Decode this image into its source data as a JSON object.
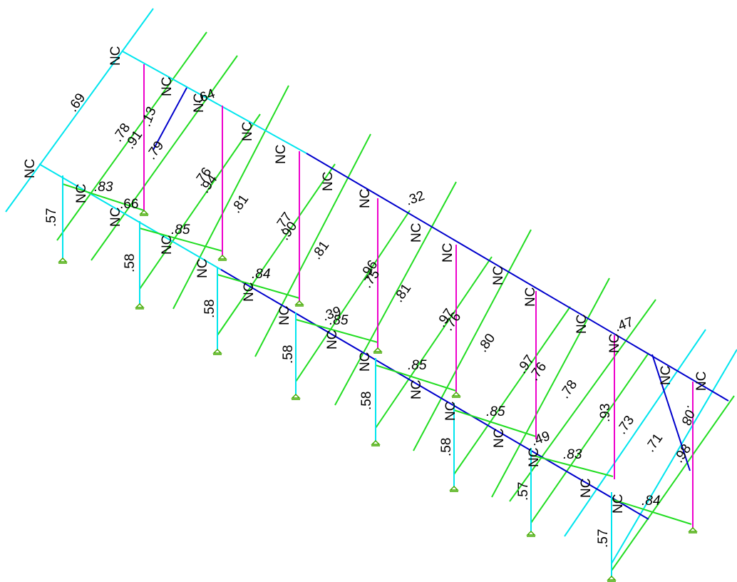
{
  "colors": {
    "background": "#ffffff",
    "beam_cyan": "#00e5ee",
    "beam_green": "#22dd22",
    "beam_blue": "#0000cc",
    "column_magenta": "#ee00cc",
    "support_green": "#44aa00",
    "text": "#000000"
  },
  "icons": {
    "support": "fixed-support-icon"
  },
  "labels": {
    "nc": "NC",
    "v57": ".57",
    "v58": ".58",
    "v69": ".69",
    "v78": ".78",
    "v91": ".91",
    "v13": ".13",
    "v79": ".79",
    "v83": ".83",
    "v66": ".66",
    "v85": ".85",
    "v64": ".64",
    "v76": ".76",
    "v94": ".94",
    "v81": ".81",
    "v77": ".77",
    "v90": ".90",
    "v84": ".84",
    "v32": ".32",
    "v96": ".96",
    "v75": ".75",
    "v39": ".39",
    "v97": ".97",
    "v80": ".80",
    "v49": ".49",
    "v93": ".93",
    "v73": ".73",
    "v47": ".47",
    "v71": ".71",
    "v98": ".98",
    "v08": ".08"
  }
}
